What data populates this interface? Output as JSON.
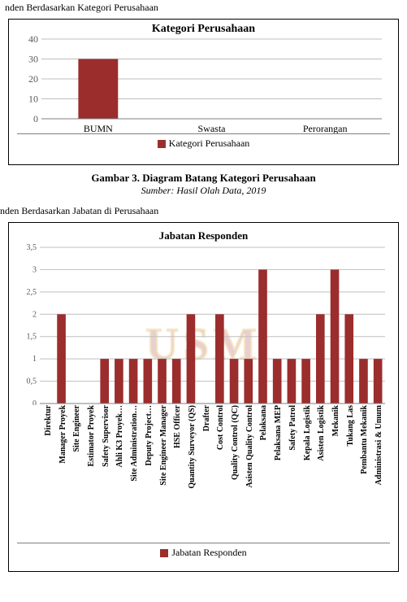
{
  "page": {
    "top_fragment": "nden Berdasarkan Kategori Perusahaan",
    "caption_title": "Gambar 3. Diagram Batang Kategori Perusahaan",
    "caption_sub": "Sumber: Hasil Olah Data, 2019",
    "subsection": "nden Berdasarkan Jabatan di Perusahaan",
    "watermark": "USM"
  },
  "chart1": {
    "type": "bar",
    "title": "Kategori Perusahaan",
    "title_fontsize": 14,
    "categories": [
      "BUMN",
      "Swasta",
      "Perorangan"
    ],
    "values": [
      30,
      0,
      0
    ],
    "bar_color": "#9b2d2d",
    "ylim": [
      0,
      40
    ],
    "ytick_step": 10,
    "axis_fontsize": 12,
    "grid_color": "#bfbfbf",
    "axis_color": "#808080",
    "background_color": "#ffffff",
    "legend_label": "Kategori Perusahaan",
    "bar_width": 0.35
  },
  "chart2": {
    "type": "bar",
    "title": "Jabatan Responden",
    "title_fontsize": 13,
    "categories": [
      "Direktur",
      "Manager Proyek",
      "Site Engineer",
      "Estimator Proyek",
      "Safety Supervisor",
      "Ahli K3 Proyek…",
      "Site Administration…",
      "Deputy Project…",
      "Site Engineer Manager",
      "HSE Officer",
      "Quantity Surveyor (QS)",
      "Drafter",
      "Cost Control",
      "Quality Control (QC)",
      "Asisten Quality Control",
      "Pelaksana",
      "Pelaksana MEP",
      "Safety Patrol",
      "Kepala Logistik",
      "Asisten Logistik",
      "Mekanik",
      "Tukang Las",
      "Pembantu Mekanik",
      "Administrasi & Umum"
    ],
    "values": [
      0,
      2,
      0,
      0,
      1,
      1,
      1,
      1,
      1,
      1,
      2,
      0,
      2,
      1,
      1,
      3,
      1,
      1,
      1,
      2,
      3,
      2,
      1,
      1
    ],
    "bar_color": "#9b2d2d",
    "ylim": [
      0,
      3.5
    ],
    "ytick_step": 0.5,
    "axis_fontsize": 10,
    "grid_color": "#bfbfbf",
    "axis_color": "#808080",
    "background_color": "#ffffff",
    "legend_label": "Jabatan Responden",
    "bar_width": 0.6
  }
}
